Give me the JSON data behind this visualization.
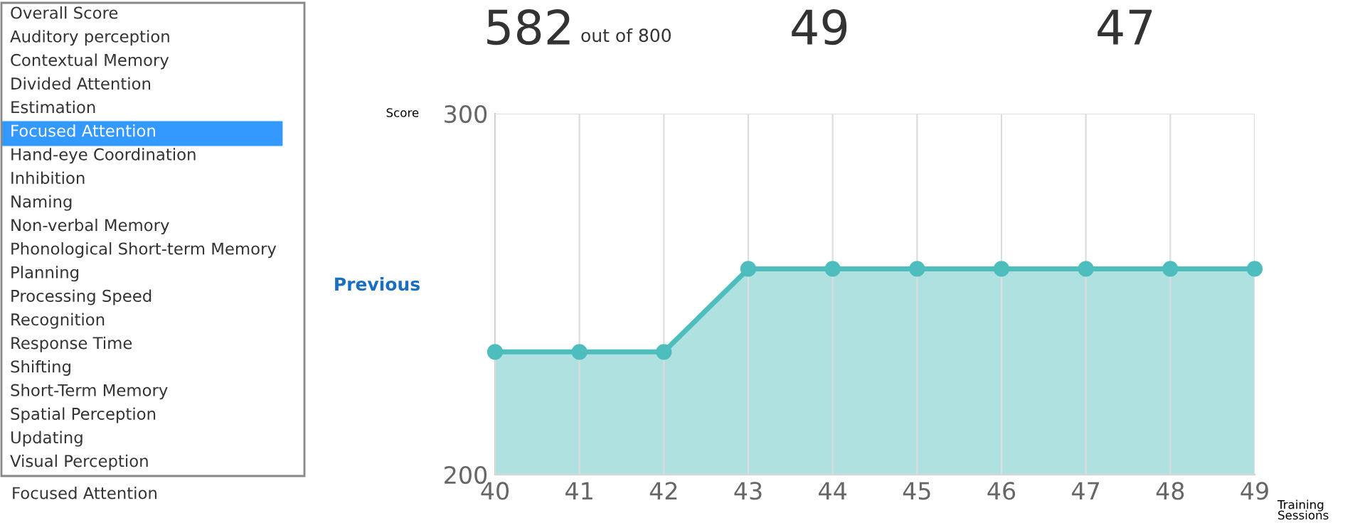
{
  "chart_data": {
    "type": "area",
    "xlabel": "Training Sessions",
    "ylabel": "Score",
    "x": [
      40,
      41,
      42,
      43,
      44,
      45,
      46,
      47,
      48,
      49
    ],
    "series": [
      {
        "color": "#4dbdbd",
        "values": [
          234,
          234,
          234,
          257,
          257,
          257,
          257,
          257,
          257,
          257
        ]
      }
    ],
    "xlim": [
      40,
      49
    ],
    "ylim": [
      200,
      300
    ],
    "xticks": [
      40,
      41,
      42,
      43,
      44,
      45,
      46,
      47,
      48,
      49
    ],
    "yticks": [
      200,
      300
    ],
    "grid": true,
    "marker": "circle",
    "line_style": "solid",
    "annotations": [
      "Overall Score",
      "Auditory perception",
      "Contextual Memory",
      "Divided Attention",
      "Estimation",
      "Focused Attention",
      "Hand-eye Coordination",
      "Inhibition",
      "Naming",
      "Non-verbal Memory",
      "Phonological Short-term Memory",
      "Planning",
      "Processing Speed",
      "Recognition",
      "Response Time",
      "Shifting",
      "Short-Term Memory",
      "Spatial Perception",
      "Updating",
      "Visual Perception",
      "Focused Attention",
      "582",
      "out of 800",
      "49",
      "47",
      "Previous"
    ]
  }
}
